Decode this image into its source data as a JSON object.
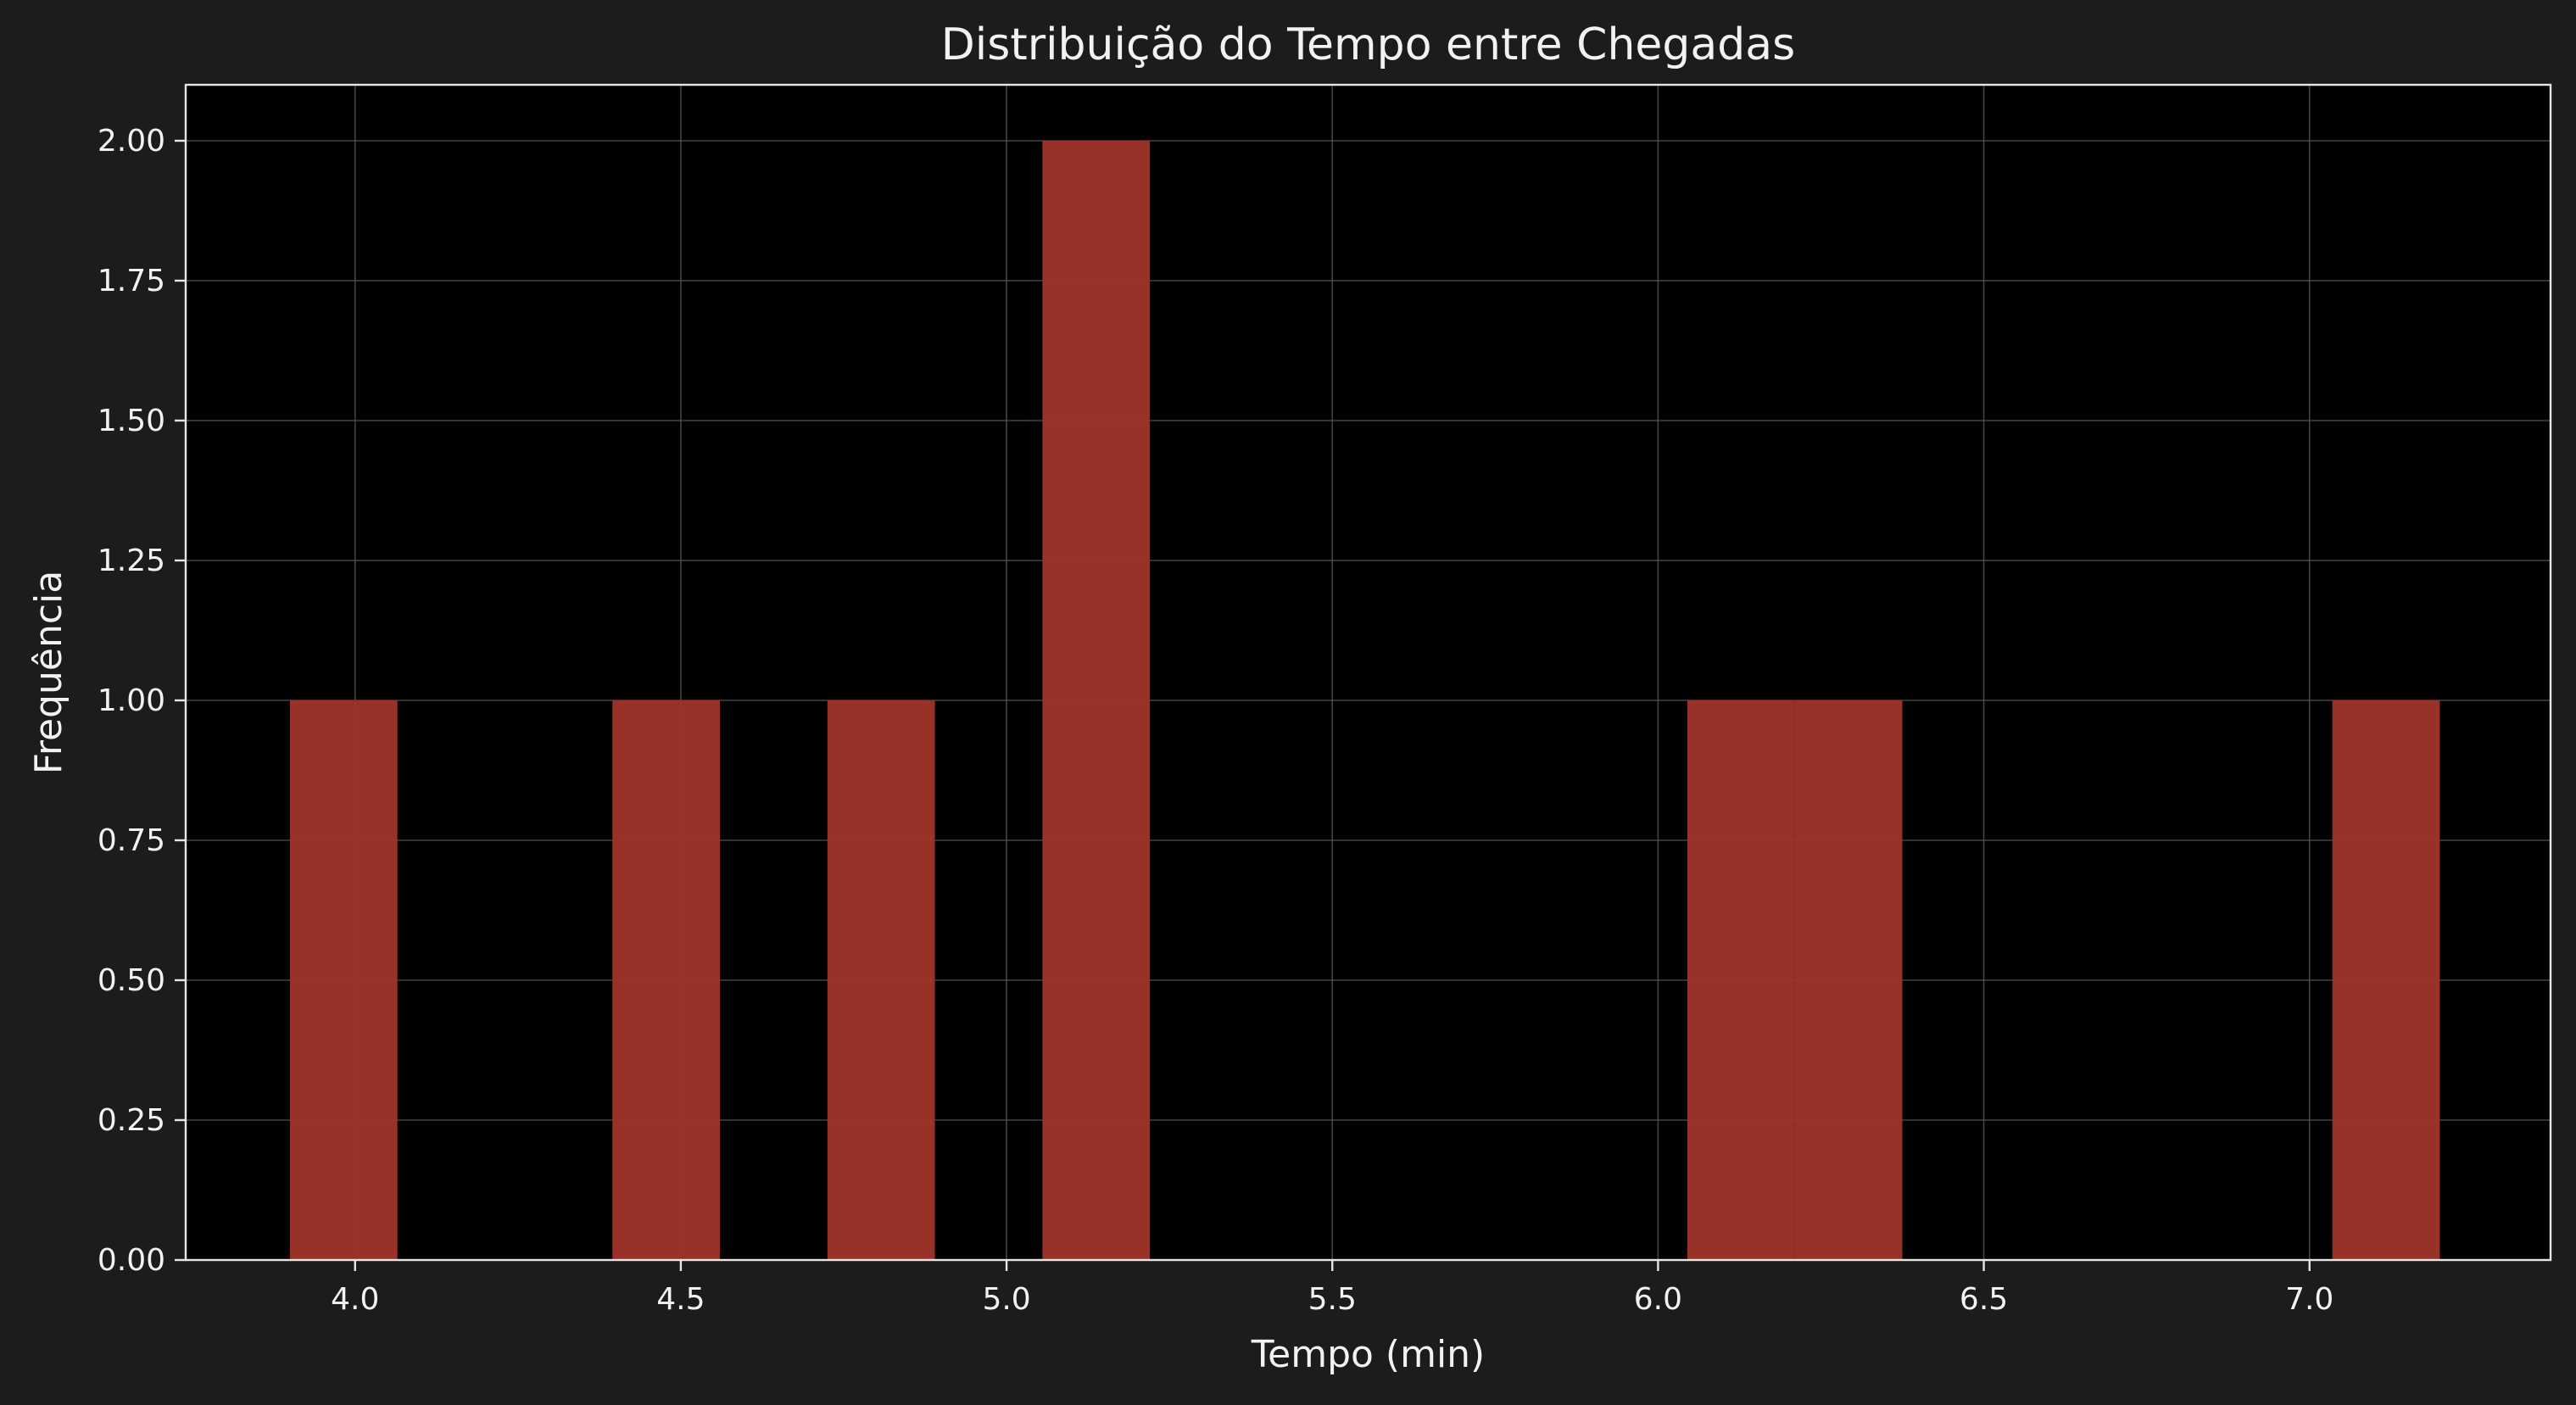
{
  "colors": {
    "figure_background": "#1c1c1c",
    "plot_background": "#000000",
    "bar_fill": "#a0352b",
    "text": "#f2f2f2",
    "axis": "#e6e6e6",
    "grid": "#5a5a5a"
  },
  "chart_data": {
    "type": "bar",
    "title": "Distribuição do Tempo entre Chegadas",
    "xlabel": "Tempo (min)",
    "ylabel": "Frequência",
    "xlim": [
      3.74,
      7.37
    ],
    "ylim": [
      0,
      2.1
    ],
    "grid": true,
    "legend": "none",
    "x_ticks": [
      4.0,
      4.5,
      5.0,
      5.5,
      6.0,
      6.5,
      7.0
    ],
    "x_tick_labels": [
      "4.0",
      "4.5",
      "5.0",
      "5.5",
      "6.0",
      "6.5",
      "7.0"
    ],
    "y_ticks": [
      0,
      0.25,
      0.5,
      0.75,
      1.0,
      1.25,
      1.5,
      1.75,
      2.0
    ],
    "y_tick_labels": [
      "0.00",
      "0.25",
      "0.50",
      "0.75",
      "1.00",
      "1.25",
      "1.50",
      "1.75",
      "2.00"
    ],
    "bins": [
      {
        "x0": 3.9,
        "x1": 4.065,
        "count": 1
      },
      {
        "x0": 4.395,
        "x1": 4.56,
        "count": 1
      },
      {
        "x0": 4.725,
        "x1": 4.89,
        "count": 1
      },
      {
        "x0": 5.055,
        "x1": 5.22,
        "count": 2
      },
      {
        "x0": 6.045,
        "x1": 6.21,
        "count": 1
      },
      {
        "x0": 6.21,
        "x1": 6.375,
        "count": 1
      },
      {
        "x0": 7.035,
        "x1": 7.2,
        "count": 1
      }
    ]
  }
}
